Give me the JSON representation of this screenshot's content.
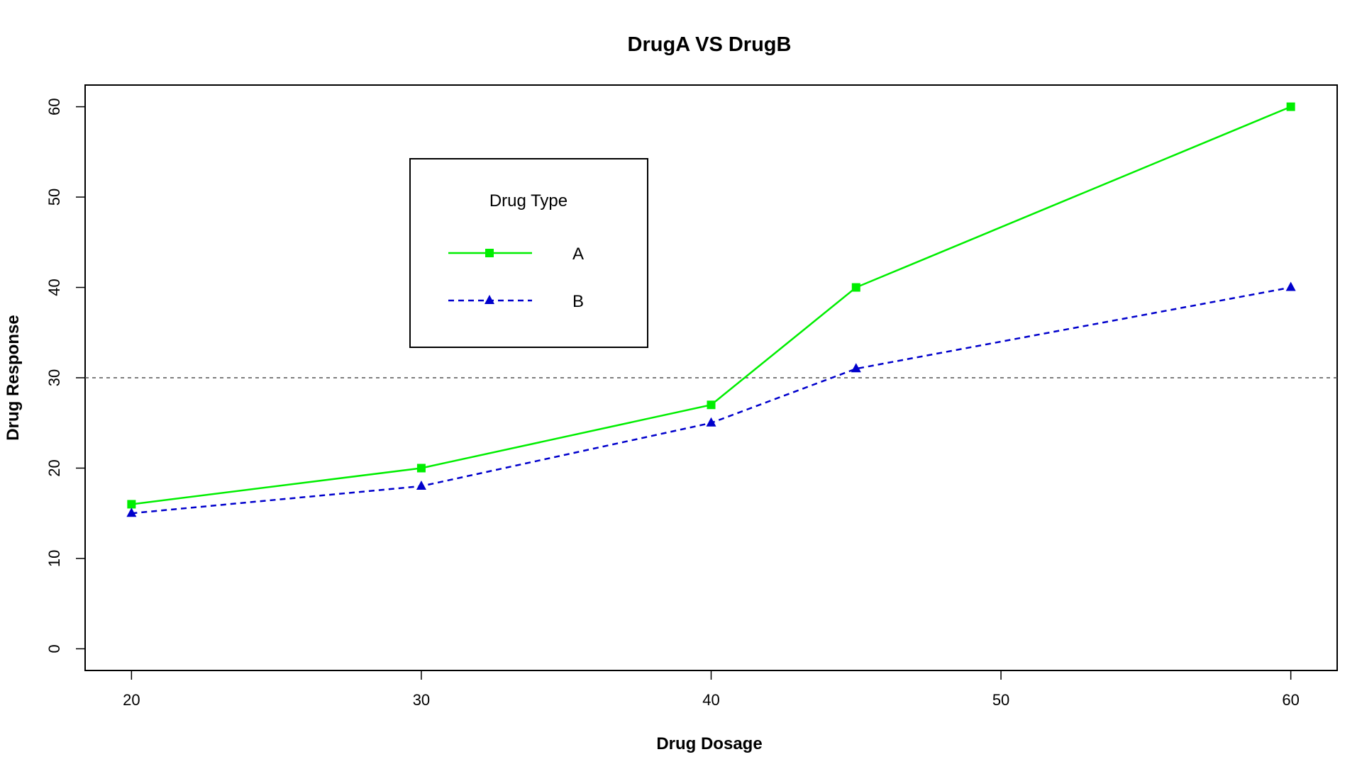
{
  "chart_data": {
    "type": "line",
    "title": "DrugA VS DrugB",
    "xlabel": "Drug Dosage",
    "ylabel": "Drug Response",
    "x": [
      20,
      30,
      40,
      45,
      60
    ],
    "xlim": [
      18.4,
      61.6
    ],
    "ylim": [
      -2.4,
      62.4
    ],
    "x_ticks": [
      20,
      30,
      40,
      50,
      60
    ],
    "y_ticks": [
      0,
      10,
      20,
      30,
      40,
      50,
      60
    ],
    "grid": false,
    "reference_line": {
      "y": 30,
      "style": "dashed",
      "color": "#555555"
    },
    "legend": {
      "title": "Drug Type",
      "placement": "top-left"
    },
    "series": [
      {
        "name": "A",
        "values": [
          16,
          20,
          27,
          40,
          60
        ],
        "color": "#00ee00",
        "line_style": "solid",
        "marker": "square"
      },
      {
        "name": "B",
        "values": [
          15,
          18,
          25,
          31,
          40
        ],
        "color": "#0000cc",
        "line_style": "dashed",
        "marker": "triangle"
      }
    ]
  }
}
